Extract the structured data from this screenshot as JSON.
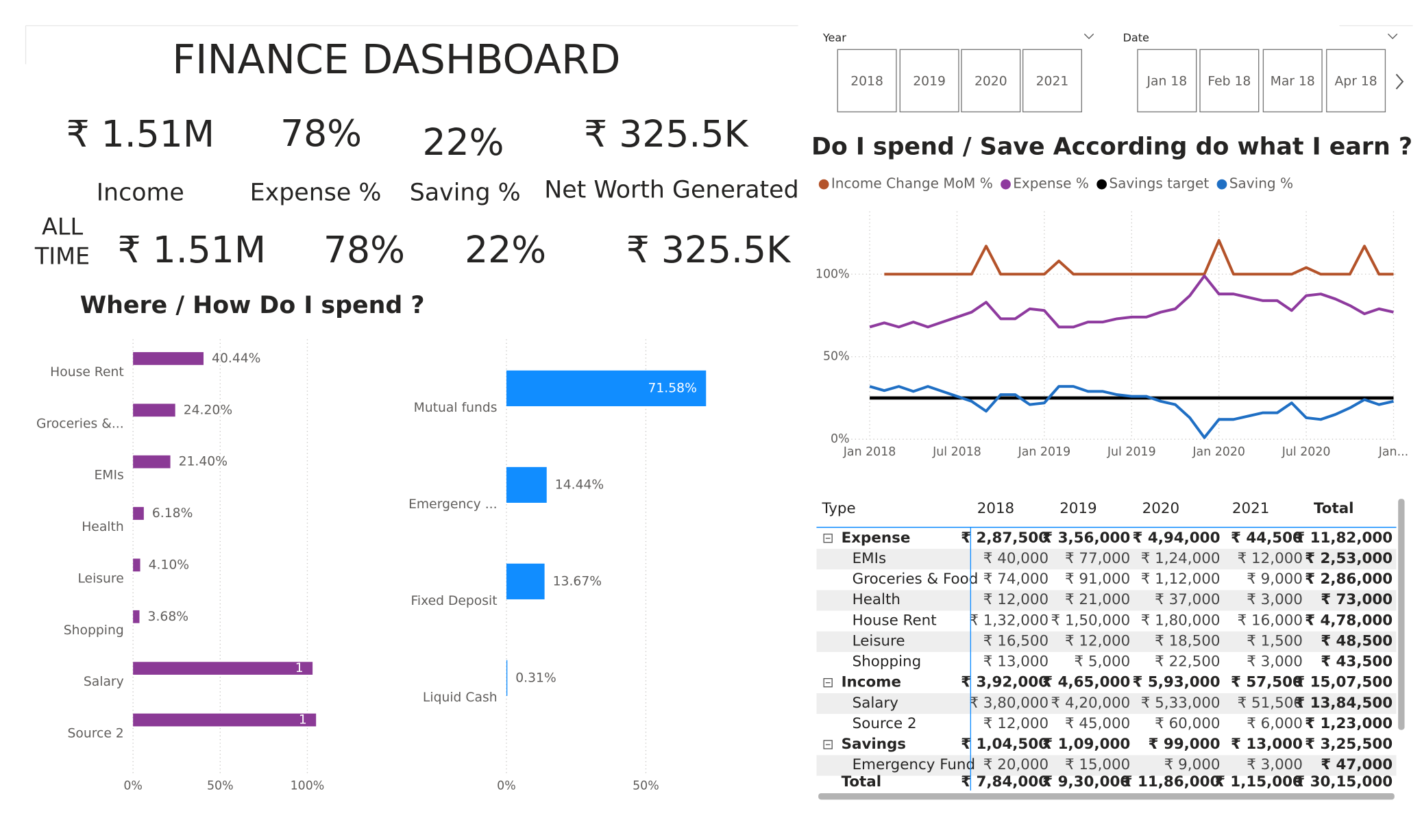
{
  "title": "FINANCE DASHBOARD",
  "kpis": {
    "current": [
      {
        "value": "₹ 1.51M",
        "label": "Income"
      },
      {
        "value": "78%",
        "label": "Expense %"
      },
      {
        "value": "22%",
        "label": "Saving %"
      },
      {
        "value": "₹ 325.5K",
        "label": "Net Worth Generated"
      }
    ],
    "all_time_label": "ALL TIME",
    "all_time": [
      "₹ 1.51M",
      "78%",
      "22%",
      "₹ 325.5K"
    ]
  },
  "slicers": [
    {
      "title": "Year",
      "items": [
        "2018",
        "2019",
        "2020",
        "2021"
      ]
    },
    {
      "title": "Date",
      "items": [
        "Jan 18",
        "Feb 18",
        "Mar 18",
        "Apr 18"
      ]
    }
  ],
  "chart_data": [
    {
      "type": "hbar",
      "title": "Where / How Do I spend ?",
      "categories": [
        "House Rent",
        "Groceries &...",
        "EMIs",
        "Health",
        "Leisure",
        "Shopping",
        "Salary",
        "Source 2"
      ],
      "values": [
        0.4044,
        0.242,
        0.214,
        0.0618,
        0.041,
        0.0368,
        1.03,
        1.05
      ],
      "value_labels": [
        "40.44%",
        "24.20%",
        "21.40%",
        "6.18%",
        "4.10%",
        "3.68%",
        "1",
        "1"
      ],
      "color": "#8b3a96",
      "xlim": [
        0,
        1.15
      ],
      "xticks": [
        {
          "value": 0,
          "label": "0%"
        },
        {
          "value": 0.5,
          "label": "50%"
        },
        {
          "value": 1,
          "label": "100%"
        }
      ],
      "grid": true
    },
    {
      "type": "hbar",
      "categories": [
        "Mutual funds",
        "Emergency ...",
        "Fixed Deposit",
        "Liquid Cash"
      ],
      "values": [
        0.7158,
        0.1444,
        0.1367,
        0.0031
      ],
      "value_labels": [
        "71.58%",
        "14.44%",
        "13.67%",
        "0.31%"
      ],
      "color": "#118dff",
      "xlim": [
        0,
        1
      ],
      "xticks": [
        {
          "value": 0,
          "label": "0%"
        },
        {
          "value": 0.5,
          "label": "50%"
        }
      ],
      "grid": true
    },
    {
      "type": "line",
      "title": "Do I spend / Save According do what I earn ?",
      "x": [
        "2018-01",
        "2018-02",
        "2018-03",
        "2018-04",
        "2018-05",
        "2018-06",
        "2018-07",
        "2018-08",
        "2018-09",
        "2018-10",
        "2018-11",
        "2018-12",
        "2019-01",
        "2019-02",
        "2019-03",
        "2019-04",
        "2019-05",
        "2019-06",
        "2019-07",
        "2019-08",
        "2019-09",
        "2019-10",
        "2019-11",
        "2019-12",
        "2020-01",
        "2020-02",
        "2020-03",
        "2020-04",
        "2020-05",
        "2020-06",
        "2020-07",
        "2020-08",
        "2020-09",
        "2020-10",
        "2020-11",
        "2020-12",
        "2021-01"
      ],
      "xticks": [
        {
          "value": "2018-01",
          "label": "Jan 2018"
        },
        {
          "value": "2018-07",
          "label": "Jul 2018"
        },
        {
          "value": "2019-01",
          "label": "Jan 2019"
        },
        {
          "value": "2019-07",
          "label": "Jul 2019"
        },
        {
          "value": "2020-01",
          "label": "Jan 2020"
        },
        {
          "value": "2020-07",
          "label": "Jul 2020"
        },
        {
          "value": "2021-01",
          "label": "Jan..."
        }
      ],
      "ylim": [
        0,
        138
      ],
      "yticks": [
        {
          "value": 0,
          "label": "0%"
        },
        {
          "value": 50,
          "label": "50%"
        },
        {
          "value": 100,
          "label": "100%"
        }
      ],
      "grid": true,
      "legend": "top-left",
      "series": [
        {
          "name": "Income Change MoM %",
          "color": "#b4532a",
          "values": [
            null,
            100,
            100,
            100,
            100,
            100,
            100,
            100,
            117,
            100,
            100,
            100,
            100,
            108,
            100,
            100,
            100,
            100,
            100,
            100,
            100,
            100,
            100,
            100,
            120.5,
            100,
            100,
            100,
            100,
            100,
            104,
            100,
            100,
            100,
            117,
            100,
            100
          ]
        },
        {
          "name": "Expense %",
          "color": "#8e3a9e",
          "values": [
            68,
            70.5,
            68,
            71,
            68,
            71,
            74,
            77,
            83,
            73,
            73,
            79,
            78,
            68,
            68,
            71,
            71,
            73,
            74,
            74,
            77,
            79,
            87,
            99,
            88,
            88,
            86,
            84,
            84,
            78,
            87,
            88,
            85,
            81,
            76,
            79,
            77
          ]
        },
        {
          "name": "Savings target",
          "color": "#000000",
          "values": [
            25,
            25,
            25,
            25,
            25,
            25,
            25,
            25,
            25,
            25,
            25,
            25,
            25,
            25,
            25,
            25,
            25,
            25,
            25,
            25,
            25,
            25,
            25,
            25,
            25,
            25,
            25,
            25,
            25,
            25,
            25,
            25,
            25,
            25,
            25,
            25,
            25
          ]
        },
        {
          "name": "Saving %",
          "color": "#1f6fc4",
          "values": [
            32,
            29.5,
            32,
            29,
            32,
            29,
            26,
            23,
            17,
            27,
            27,
            21,
            22,
            32,
            32,
            29,
            29,
            27,
            26,
            26,
            23,
            21,
            13,
            1,
            12,
            12,
            14,
            16,
            16,
            22,
            13,
            12,
            15,
            19,
            24,
            21,
            23
          ]
        }
      ]
    }
  ],
  "table": {
    "header": [
      "Type",
      "2018",
      "2019",
      "2020",
      "2021",
      "Total"
    ],
    "groups": [
      {
        "name": "Expense",
        "values": [
          "₹ 2,87,500",
          "₹ 3,56,000",
          "₹ 4,94,000",
          "₹ 44,500",
          "₹ 11,82,000"
        ],
        "rows": [
          {
            "name": "EMIs",
            "values": [
              "₹ 40,000",
              "₹ 77,000",
              "₹ 1,24,000",
              "₹ 12,000",
              "₹ 2,53,000"
            ]
          },
          {
            "name": "Groceries & Food",
            "values": [
              "₹ 74,000",
              "₹ 91,000",
              "₹ 1,12,000",
              "₹ 9,000",
              "₹ 2,86,000"
            ]
          },
          {
            "name": "Health",
            "values": [
              "₹ 12,000",
              "₹ 21,000",
              "₹ 37,000",
              "₹ 3,000",
              "₹ 73,000"
            ]
          },
          {
            "name": "House Rent",
            "values": [
              "₹ 1,32,000",
              "₹ 1,50,000",
              "₹ 1,80,000",
              "₹ 16,000",
              "₹ 4,78,000"
            ]
          },
          {
            "name": "Leisure",
            "values": [
              "₹ 16,500",
              "₹ 12,000",
              "₹ 18,500",
              "₹ 1,500",
              "₹ 48,500"
            ]
          },
          {
            "name": "Shopping",
            "values": [
              "₹ 13,000",
              "₹ 5,000",
              "₹ 22,500",
              "₹ 3,000",
              "₹ 43,500"
            ]
          }
        ]
      },
      {
        "name": "Income",
        "values": [
          "₹ 3,92,000",
          "₹ 4,65,000",
          "₹ 5,93,000",
          "₹ 57,500",
          "₹ 15,07,500"
        ],
        "rows": [
          {
            "name": "Salary",
            "values": [
              "₹ 3,80,000",
              "₹ 4,20,000",
              "₹ 5,33,000",
              "₹ 51,500",
              "₹ 13,84,500"
            ]
          },
          {
            "name": "Source 2",
            "values": [
              "₹ 12,000",
              "₹ 45,000",
              "₹ 60,000",
              "₹ 6,000",
              "₹ 1,23,000"
            ]
          }
        ]
      },
      {
        "name": "Savings",
        "values": [
          "₹ 1,04,500",
          "₹ 1,09,000",
          "₹ 99,000",
          "₹ 13,000",
          "₹ 3,25,500"
        ],
        "rows": [
          {
            "name": "Emergency Fund",
            "values": [
              "₹ 20,000",
              "₹ 15,000",
              "₹ 9,000",
              "₹ 3,000",
              "₹ 47,000"
            ]
          }
        ]
      }
    ],
    "total": {
      "name": "Total",
      "values": [
        "₹ 7,84,000",
        "₹ 9,30,000",
        "₹ 11,86,000",
        "₹ 1,15,000",
        "₹ 30,15,000"
      ]
    }
  }
}
